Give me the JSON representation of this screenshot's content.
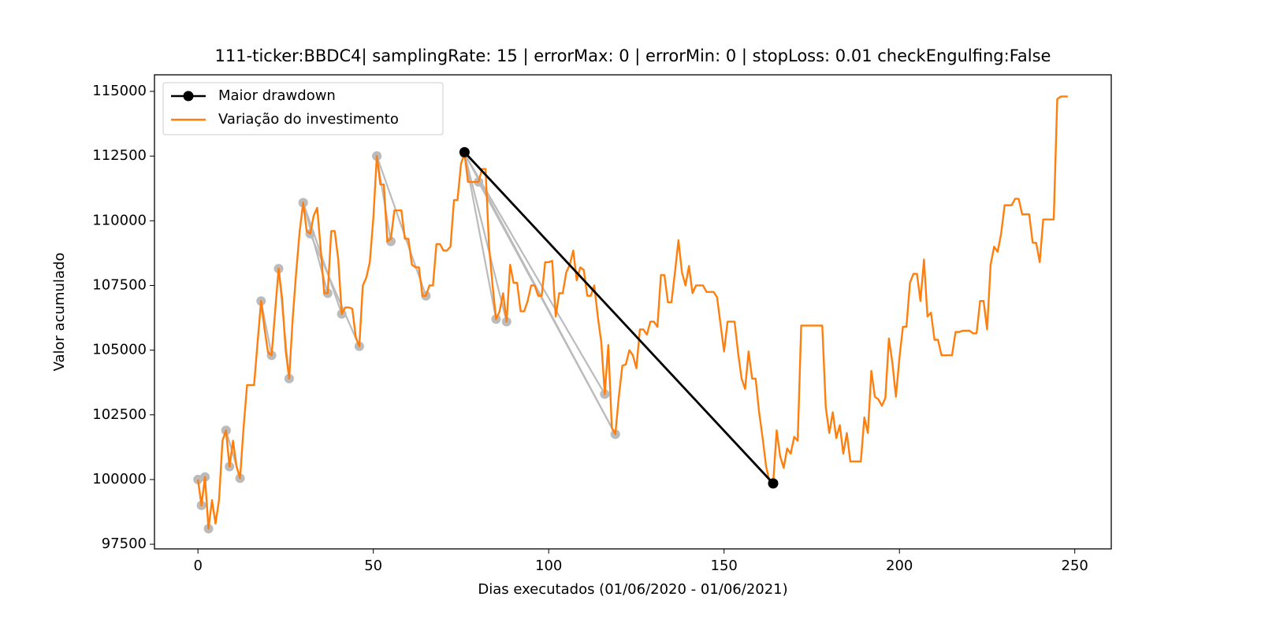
{
  "chart_data": {
    "type": "line",
    "title": "111-ticker:BBDC4| samplingRate: 15 | errorMax: 0 | errorMin: 0 | stopLoss: 0.01 checkEngulfing:False",
    "xlabel": "Dias executados (01/06/2020 - 01/06/2021)",
    "ylabel": "Valor acumulado",
    "xlim": [
      -12.4,
      260.4
    ],
    "ylim": [
      97320,
      115640
    ],
    "xticks": [
      0,
      50,
      100,
      150,
      200,
      250
    ],
    "yticks": [
      97500,
      100000,
      102500,
      105000,
      107500,
      110000,
      112500,
      115000
    ],
    "legend": "upper left",
    "gray_color": "#bbbbbb",
    "gray_segments": [
      {
        "x": [
          0,
          1
        ],
        "values": [
          100000,
          99000
        ]
      },
      {
        "x": [
          2,
          3
        ],
        "values": [
          100100,
          98100
        ]
      },
      {
        "x": [
          8,
          12
        ],
        "values": [
          101900,
          100050
        ]
      },
      {
        "x": [
          8,
          9
        ],
        "values": [
          101900,
          100500
        ]
      },
      {
        "x": [
          18,
          21
        ],
        "values": [
          106900,
          104800
        ]
      },
      {
        "x": [
          23,
          26
        ],
        "values": [
          108150,
          103900
        ]
      },
      {
        "x": [
          30,
          37
        ],
        "values": [
          110700,
          107200
        ]
      },
      {
        "x": [
          30,
          41
        ],
        "values": [
          110700,
          106400
        ]
      },
      {
        "x": [
          32,
          46
        ],
        "values": [
          109500,
          105150
        ]
      },
      {
        "x": [
          51,
          55
        ],
        "values": [
          112500,
          109200
        ]
      },
      {
        "x": [
          51,
          65
        ],
        "values": [
          112500,
          107100
        ]
      },
      {
        "x": [
          76,
          85
        ],
        "values": [
          112600,
          106200
        ]
      },
      {
        "x": [
          76,
          88
        ],
        "values": [
          112600,
          106100
        ]
      },
      {
        "x": [
          76,
          116
        ],
        "values": [
          112600,
          103300
        ]
      },
      {
        "x": [
          76,
          119
        ],
        "values": [
          112600,
          101750
        ]
      },
      {
        "x": [
          80,
          119
        ],
        "values": [
          111500,
          101750
        ]
      }
    ],
    "series": [
      {
        "name": "Maior drawdown",
        "color": "#000000",
        "marker": true,
        "x": [
          76,
          164
        ],
        "values": [
          112650,
          99850
        ]
      },
      {
        "name": "Variação do investimento",
        "color": "#ff7f0e",
        "marker": false,
        "x": [
          0,
          1,
          2,
          3,
          4,
          5,
          6,
          7,
          8,
          9,
          10,
          11,
          12,
          13,
          14,
          15,
          16,
          17,
          18,
          19,
          20,
          21,
          22,
          23,
          24,
          25,
          26,
          27,
          28,
          29,
          30,
          31,
          32,
          33,
          34,
          35,
          36,
          37,
          38,
          39,
          40,
          41,
          42,
          43,
          44,
          45,
          46,
          47,
          48,
          49,
          50,
          51,
          52,
          53,
          54,
          55,
          56,
          57,
          58,
          59,
          60,
          61,
          62,
          63,
          64,
          65,
          66,
          67,
          68,
          69,
          70,
          71,
          72,
          73,
          74,
          75,
          76,
          77,
          78,
          79,
          80,
          81,
          82,
          83,
          84,
          85,
          86,
          87,
          88,
          89,
          90,
          91,
          92,
          93,
          94,
          95,
          96,
          97,
          98,
          99,
          100,
          101,
          102,
          103,
          104,
          105,
          106,
          107,
          108,
          109,
          110,
          111,
          112,
          113,
          114,
          115,
          116,
          117,
          118,
          119,
          120,
          121,
          122,
          123,
          124,
          125,
          126,
          127,
          128,
          129,
          130,
          131,
          132,
          133,
          134,
          135,
          136,
          137,
          138,
          139,
          140,
          141,
          142,
          143,
          144,
          145,
          146,
          147,
          148,
          149,
          150,
          151,
          152,
          153,
          154,
          155,
          156,
          157,
          158,
          159,
          160,
          161,
          162,
          163,
          164,
          165,
          166,
          167,
          168,
          169,
          170,
          171,
          172,
          173,
          174,
          175,
          176,
          177,
          178,
          179,
          180,
          181,
          182,
          183,
          184,
          185,
          186,
          187,
          188,
          189,
          190,
          191,
          192,
          193,
          194,
          195,
          196,
          197,
          198,
          199,
          200,
          201,
          202,
          203,
          204,
          205,
          206,
          207,
          208,
          209,
          210,
          211,
          212,
          213,
          214,
          215,
          216,
          217,
          218,
          219,
          220,
          221,
          222,
          223,
          224,
          225,
          226,
          227,
          228,
          229,
          230,
          231,
          232,
          233,
          234,
          235,
          236,
          237,
          238,
          239,
          240,
          241,
          242,
          243,
          244,
          245,
          246,
          247,
          248
        ],
        "values": [
          100000,
          99000,
          100100,
          98100,
          99200,
          98300,
          99200,
          101500,
          101900,
          100500,
          101500,
          100500,
          100050,
          102000,
          103650,
          103650,
          103650,
          105300,
          106900,
          105800,
          104900,
          104800,
          106500,
          108150,
          107000,
          105000,
          103900,
          106200,
          108000,
          109600,
          110700,
          109600,
          109500,
          110200,
          110500,
          108900,
          107200,
          107200,
          109600,
          109600,
          108500,
          106400,
          106650,
          106650,
          106600,
          105500,
          105150,
          107500,
          107800,
          108400,
          110100,
          112500,
          111400,
          111400,
          109200,
          109300,
          110400,
          110400,
          110400,
          109300,
          109300,
          108300,
          108200,
          108200,
          107100,
          107100,
          107500,
          107500,
          109100,
          109100,
          108850,
          108850,
          109000,
          110800,
          110800,
          112200,
          112600,
          111500,
          111500,
          111500,
          111500,
          112000,
          112000,
          109000,
          107500,
          106200,
          106500,
          107200,
          106100,
          108300,
          107600,
          107600,
          106500,
          106500,
          106900,
          107500,
          107500,
          107100,
          107100,
          108400,
          108400,
          108450,
          106300,
          107200,
          107200,
          108000,
          108300,
          108850,
          107700,
          108200,
          108100,
          107100,
          107100,
          107500,
          106300,
          105300,
          103300,
          105200,
          102000,
          101750,
          103200,
          104400,
          104450,
          105000,
          104800,
          104300,
          105800,
          105800,
          105600,
          106100,
          106100,
          105900,
          107900,
          107900,
          106850,
          106850,
          108000,
          109250,
          108000,
          107500,
          108250,
          107200,
          107500,
          107500,
          107500,
          107250,
          107250,
          107250,
          107050,
          106000,
          104950,
          106100,
          106100,
          106100,
          104900,
          103900,
          103500,
          104950,
          103900,
          103900,
          102600,
          101600,
          100500,
          99900,
          99850,
          101900,
          100900,
          100450,
          101200,
          101000,
          101650,
          101500,
          105950,
          105950,
          105950,
          105950,
          105950,
          105950,
          105950,
          102800,
          101800,
          102600,
          101600,
          102100,
          101000,
          101800,
          100700,
          100700,
          100700,
          100700,
          102400,
          101800,
          104200,
          103200,
          103100,
          102850,
          103150,
          105450,
          104500,
          103200,
          104700,
          105900,
          105900,
          107600,
          107950,
          107950,
          106900,
          108500,
          106300,
          106450,
          105400,
          105400,
          104800,
          104800,
          104800,
          104800,
          105700,
          105700,
          105750,
          105750,
          105750,
          105650,
          105650,
          106900,
          106900,
          105800,
          108300,
          109000,
          108800,
          109500,
          110600,
          110600,
          110600,
          110850,
          110850,
          110250,
          110250,
          110250,
          109150,
          109150,
          108400,
          110050,
          110050,
          110050,
          110050,
          114700,
          114800,
          114800,
          114800
        ]
      }
    ]
  }
}
